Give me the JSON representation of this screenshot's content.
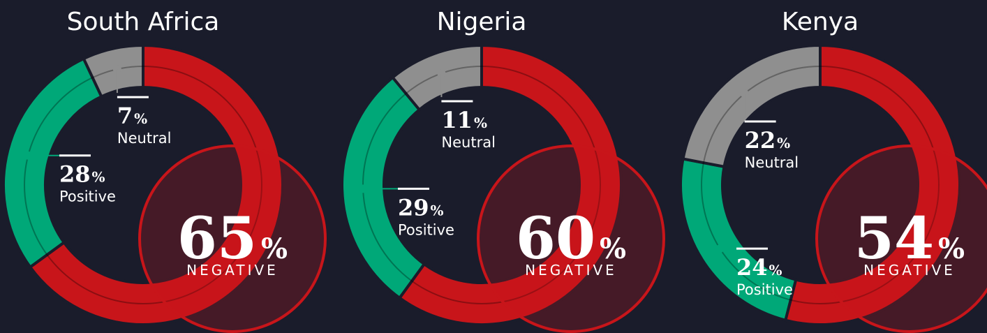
{
  "chart_data": [
    {
      "type": "donut",
      "title": "South Africa",
      "categories": [
        "NEGATIVE",
        "Positive",
        "Neutral"
      ],
      "values": [
        65,
        28,
        7
      ],
      "unit": "%",
      "colors": [
        "#c8151a",
        "#00a878",
        "#8f8f8f"
      ]
    },
    {
      "type": "donut",
      "title": "Nigeria",
      "categories": [
        "NEGATIVE",
        "Positive",
        "Neutral"
      ],
      "values": [
        60,
        29,
        11
      ],
      "unit": "%",
      "colors": [
        "#c8151a",
        "#00a878",
        "#8f8f8f"
      ]
    },
    {
      "type": "donut",
      "title": "Kenya",
      "categories": [
        "NEGATIVE",
        "Positive",
        "Neutral"
      ],
      "values": [
        54,
        24,
        22
      ],
      "unit": "%",
      "colors": [
        "#c8151a",
        "#00a878",
        "#8f8f8f"
      ]
    }
  ]
}
